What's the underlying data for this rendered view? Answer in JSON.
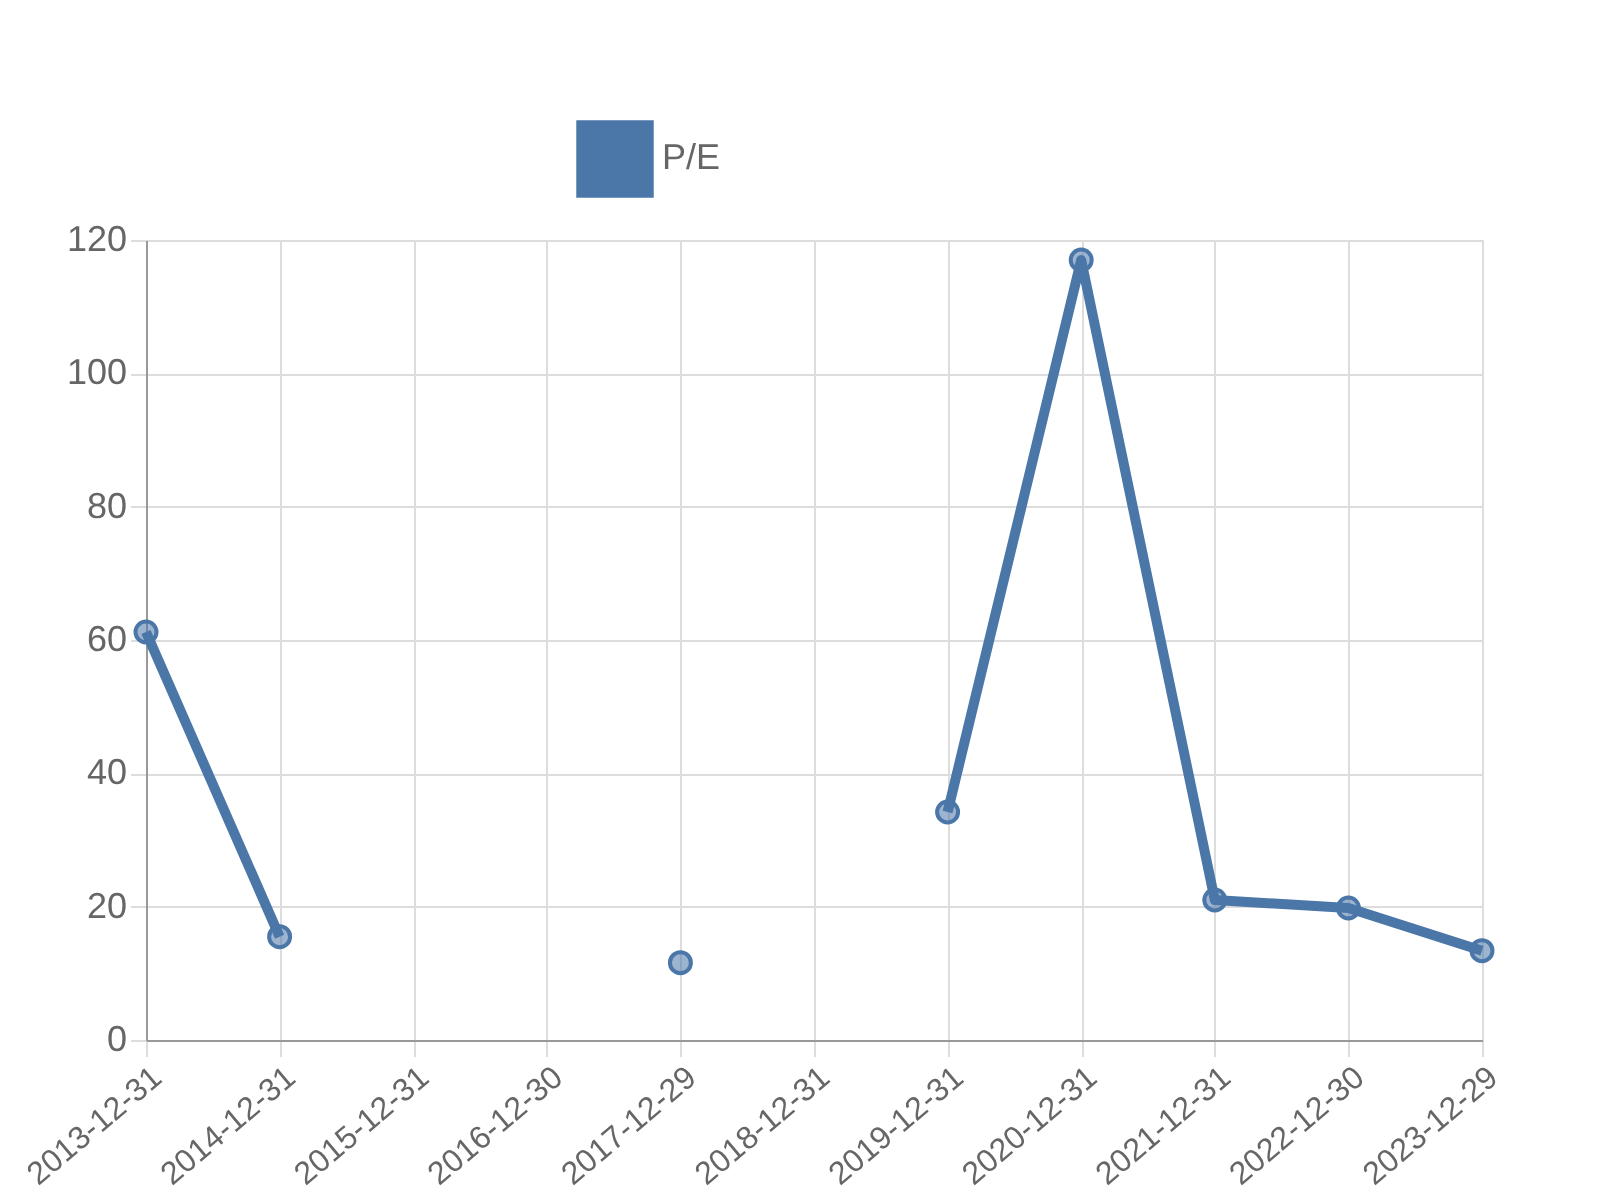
{
  "chart_data": {
    "type": "line",
    "categories": [
      "2013-12-31",
      "2014-12-31",
      "2015-12-31",
      "2016-12-30",
      "2017-12-29",
      "2018-12-31",
      "2019-12-31",
      "2020-12-31",
      "2021-12-31",
      "2022-12-30",
      "2023-12-29"
    ],
    "series": [
      {
        "name": "P/E",
        "color": "#4a76a8",
        "values": [
          61.2,
          15.5,
          null,
          null,
          11.6,
          null,
          34.2,
          117.0,
          21.0,
          19.8,
          13.4
        ]
      }
    ],
    "ylim": [
      0,
      120
    ],
    "yticks": [
      0,
      20,
      40,
      60,
      80,
      100,
      120
    ],
    "grid": true,
    "legend": "top",
    "marker": "circle",
    "line_style": "solid"
  }
}
